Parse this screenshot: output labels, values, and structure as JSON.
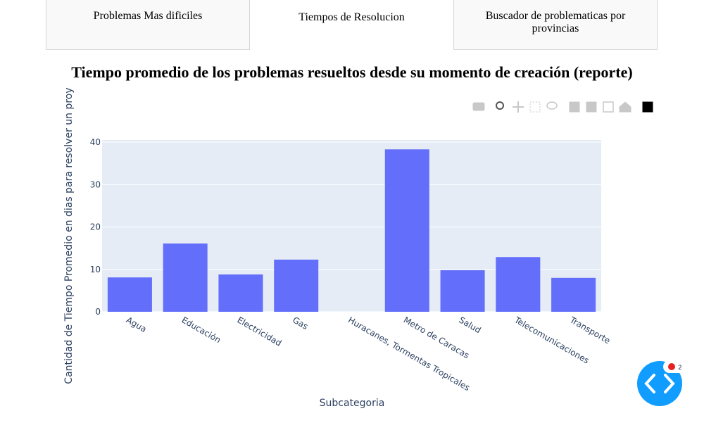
{
  "tabs": [
    "Problemas Mas dificiles",
    "Tiempos de Resolucion",
    "Buscador de problematicas por provincias"
  ],
  "chart_data": {
    "type": "bar",
    "title": "Tiempo promedio de los problemas resueltos desde su momento de creación (reporte)",
    "x_label": "Subcategoria",
    "y_label": "Cantidad de Tiempo Promedio en dias para resolver un proy",
    "categories": [
      "Agua",
      "Educación",
      "Electricidad",
      "Gas",
      "Huracanes, Tormentas Tropicales",
      "Metro de Caracas",
      "Salud",
      "Telecomunicaciones",
      "Transporte"
    ],
    "values": [
      8.1,
      16.1,
      8.8,
      12.3,
      0,
      38.3,
      9.8,
      12.9,
      8.0
    ],
    "color": "#636efa",
    "ylim": [
      0,
      40.5
    ],
    "yticks": [
      0,
      10,
      20,
      30,
      40
    ],
    "grid": true
  },
  "badge_count": 2
}
